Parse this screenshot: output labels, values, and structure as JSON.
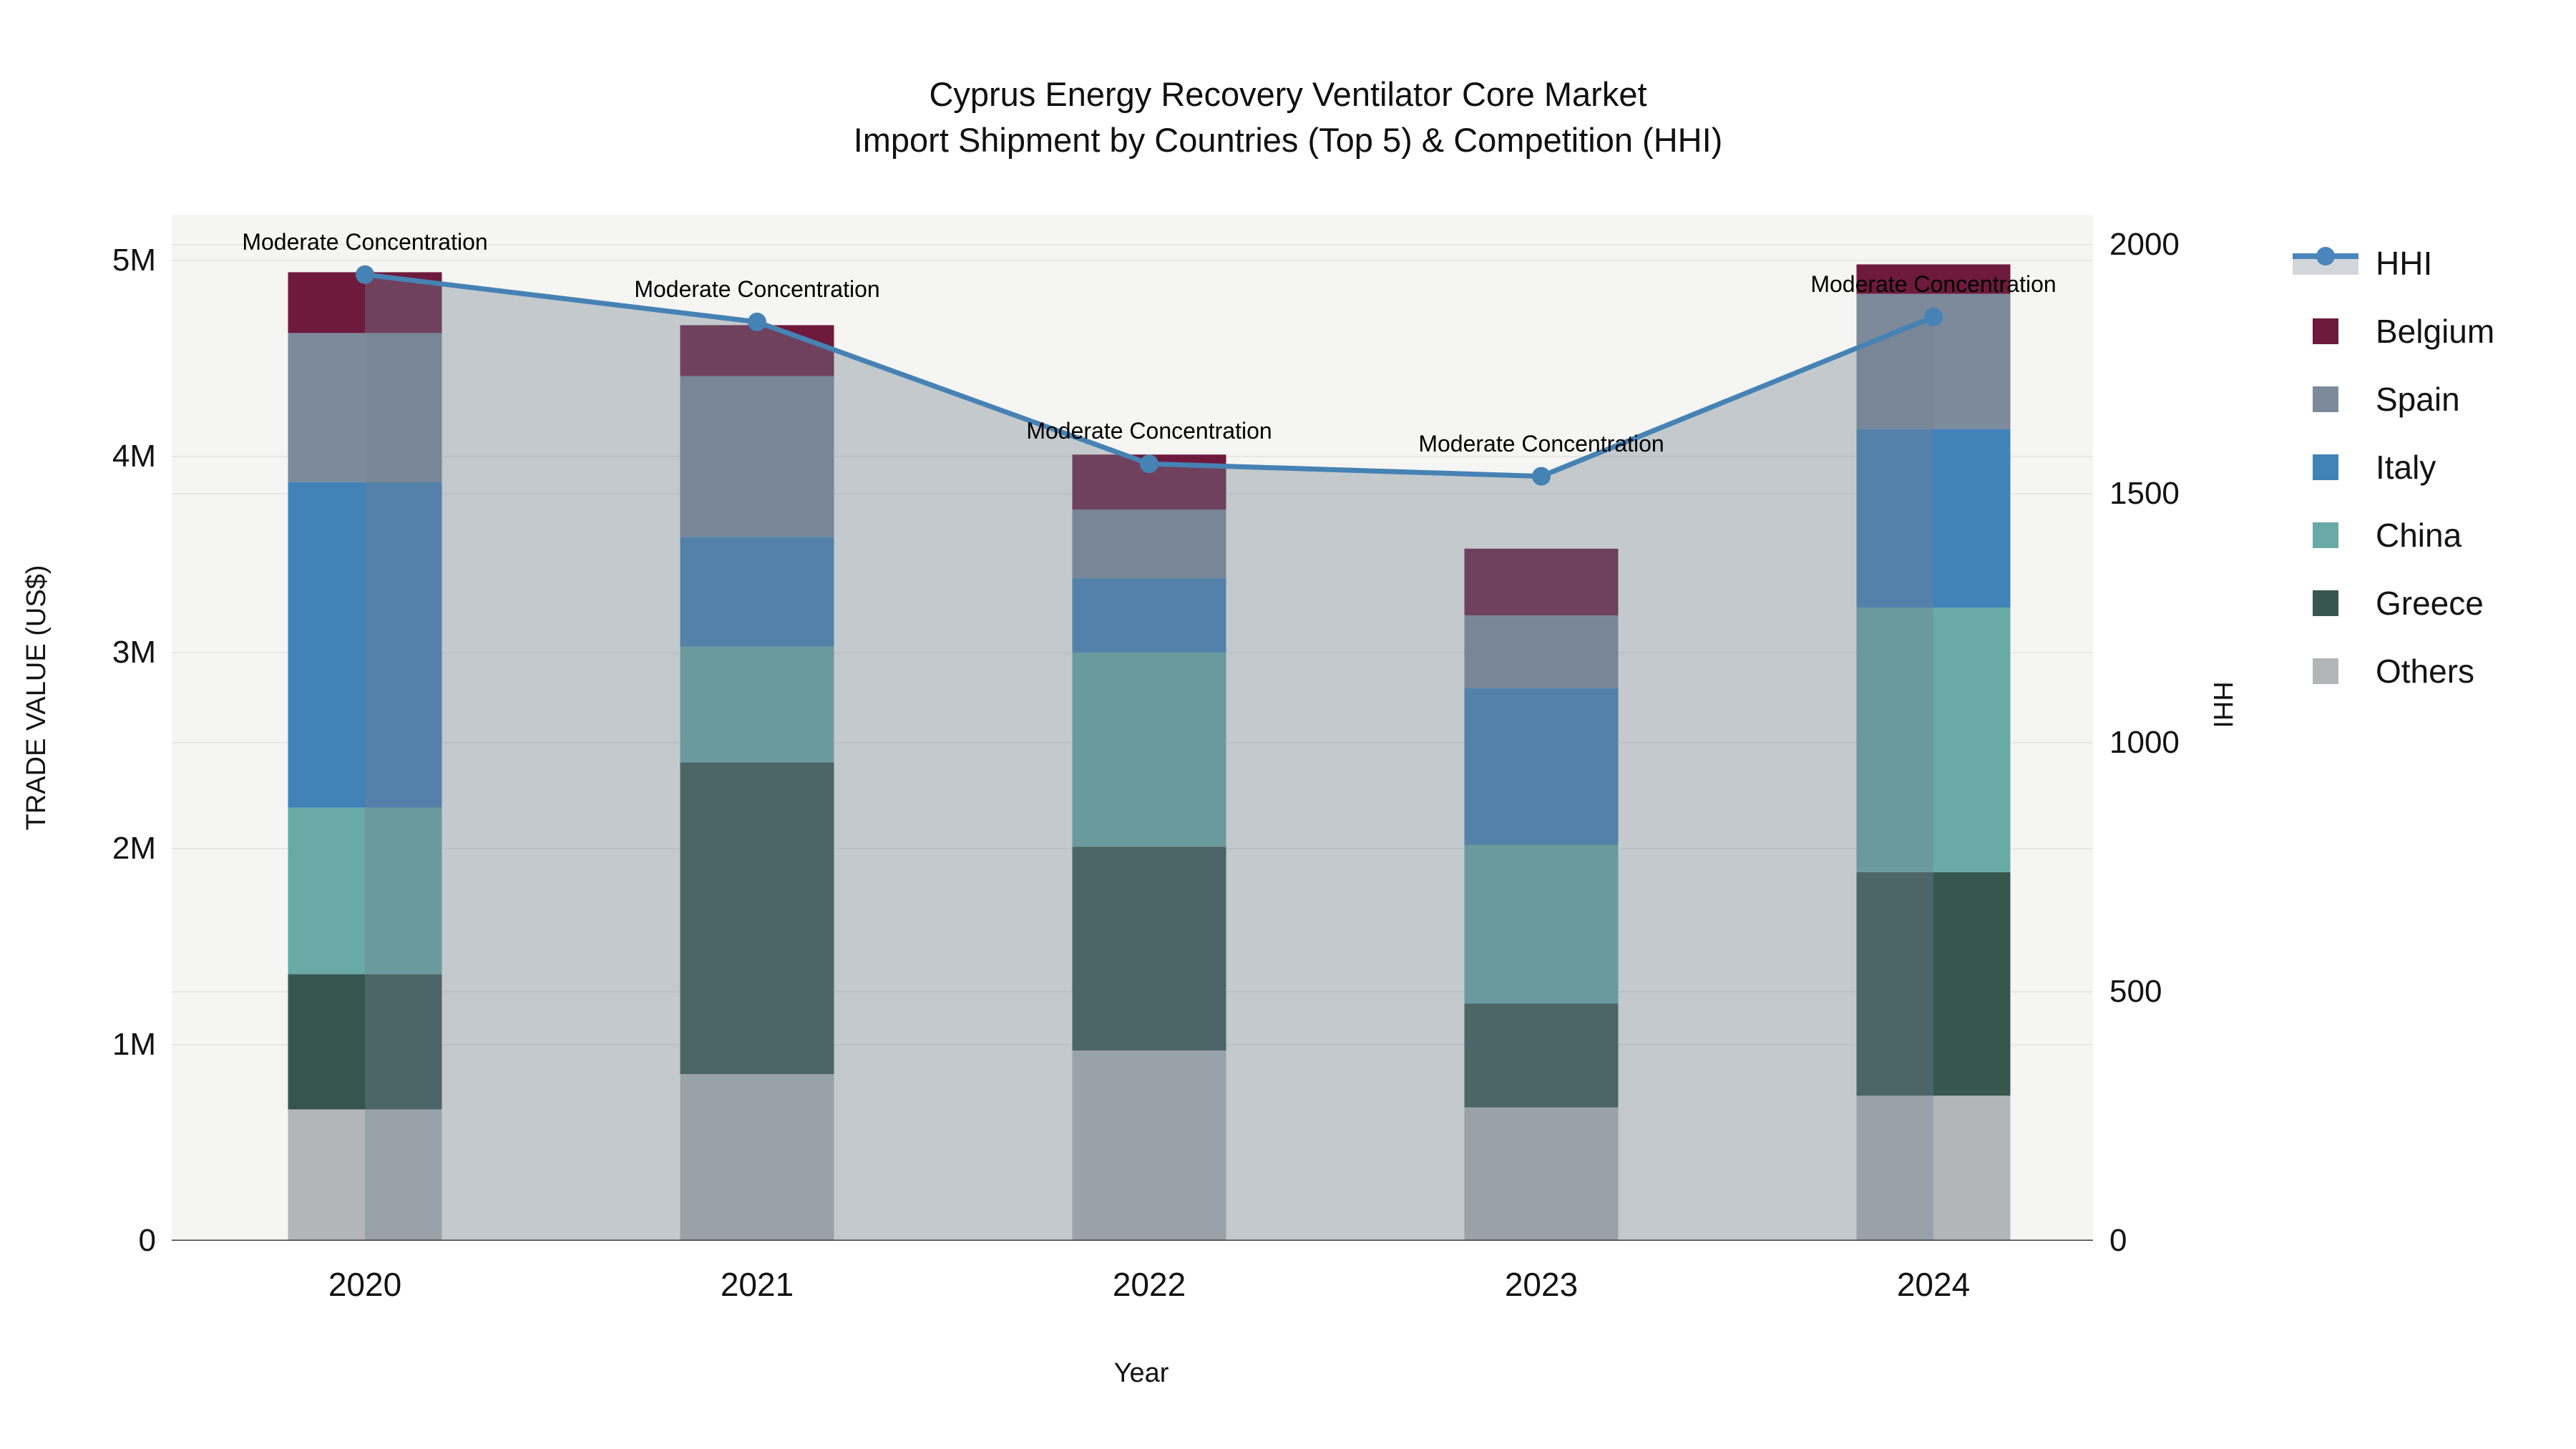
{
  "title": {
    "line1": "Cyprus Energy Recovery Ventilator Core Market",
    "line2": "Import Shipment by Countries (Top 5) & Competition (HHI)"
  },
  "annotation_text": "Moderate Concentration",
  "axes": {
    "x": {
      "title": "Year",
      "tick_labels": [
        "2020",
        "2021",
        "2022",
        "2023",
        "2024"
      ]
    },
    "y_left": {
      "title": "TRADE VALUE (US$)",
      "tick_labels": [
        "0",
        "1M",
        "2M",
        "3M",
        "4M",
        "5M"
      ],
      "tick_values": [
        0,
        1000000,
        2000000,
        3000000,
        4000000,
        5000000
      ],
      "range": [
        0,
        5000000
      ]
    },
    "y_right": {
      "title": "HHI",
      "tick_labels": [
        "0",
        "500",
        "1000",
        "1500",
        "2000"
      ],
      "tick_values": [
        0,
        500,
        1000,
        1500,
        2000
      ],
      "range": [
        0,
        2000
      ]
    }
  },
  "chart_data": {
    "type": "bar",
    "subtype": "stacked-bars-with-line-overlay",
    "categories": [
      "2020",
      "2021",
      "2022",
      "2023",
      "2024"
    ],
    "stack_bottom_to_top": [
      "Others",
      "Greece",
      "China",
      "Italy",
      "Spain",
      "Belgium"
    ],
    "series": [
      {
        "name": "Belgium",
        "color": "#6e1a3c",
        "values": [
          310000,
          260000,
          280000,
          340000,
          150000
        ]
      },
      {
        "name": "Spain",
        "color": "#7c8a9b",
        "values": [
          760000,
          820000,
          350000,
          370000,
          690000
        ]
      },
      {
        "name": "Italy",
        "color": "#4182b9",
        "values": [
          1660000,
          560000,
          380000,
          800000,
          910000
        ]
      },
      {
        "name": "China",
        "color": "#68aaa6",
        "values": [
          850000,
          590000,
          990000,
          810000,
          1350000
        ]
      },
      {
        "name": "Greece",
        "color": "#36564f",
        "values": [
          690000,
          1590000,
          1040000,
          530000,
          1140000
        ]
      },
      {
        "name": "Others",
        "color": "#b3b6b8",
        "values": [
          670000,
          850000,
          970000,
          680000,
          740000
        ]
      }
    ],
    "bar_totals": [
      4940000,
      4670000,
      4010000,
      3530000,
      4980000
    ],
    "line_series": {
      "name": "HHI",
      "axis": "right",
      "color": "#4682b4",
      "area_fill": "rgba(112,128,144,0.38)",
      "values": [
        1940,
        1845,
        1560,
        1535,
        1855
      ]
    },
    "title": "Cyprus Energy Recovery Ventilator Core Market Import Shipment by Countries (Top 5) & Competition (HHI)",
    "xlabel": "Year",
    "ylabel_left": "TRADE VALUE (US$)",
    "ylabel_right": "HHI",
    "ylim_left": [
      0,
      5000000
    ],
    "ylim_right": [
      0,
      2000
    ],
    "grid": true,
    "legend_position": "right"
  }
}
